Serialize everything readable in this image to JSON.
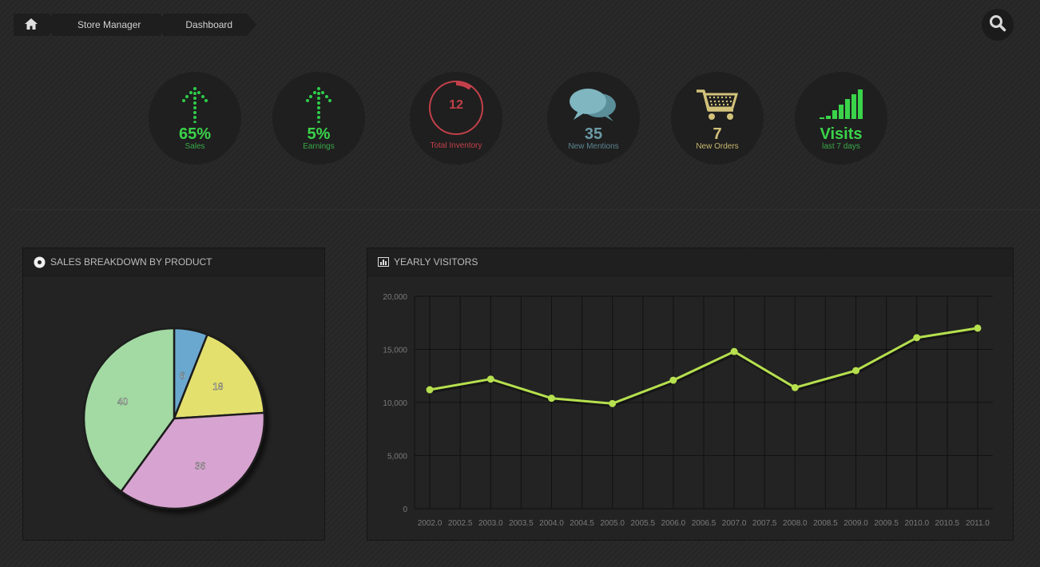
{
  "breadcrumb": {
    "home_icon": "home-icon",
    "items": [
      "Store Manager",
      "Dashboard"
    ]
  },
  "search": {
    "icon": "search-icon"
  },
  "stats": [
    {
      "value": "65%",
      "label": "Sales",
      "icon": "dotted-arrow-up-icon",
      "color": "#3ad44a"
    },
    {
      "value": "5%",
      "label": "Earnings",
      "icon": "dotted-arrow-up-icon",
      "color": "#3ad44a"
    },
    {
      "value": "12",
      "label": "Total Inventory",
      "icon": "ring-gauge-icon",
      "color": "#c8444a"
    },
    {
      "value": "35",
      "label": "New Mentions",
      "icon": "chat-bubbles-icon",
      "color": "#6b9aa6"
    },
    {
      "value": "7",
      "label": "New Orders",
      "icon": "shopping-cart-icon",
      "color": "#d2c27a"
    },
    {
      "value": "Visits",
      "label": "last 7 days",
      "icon": "signal-bars-icon",
      "color": "#3ad44a"
    }
  ],
  "pie_widget": {
    "title": "SALES BREAKDOWN BY PRODUCT",
    "icon": "pie-chart-icon",
    "chart_data": {
      "type": "pie",
      "values": [
        6,
        18,
        36,
        40
      ],
      "colors": [
        "#6aa8d0",
        "#e4e06e",
        "#d7a3d0",
        "#a3d9a3"
      ],
      "labels": [
        "6",
        "18",
        "36",
        "40"
      ]
    }
  },
  "line_widget": {
    "title": "YEARLY VISITORS",
    "icon": "bar-chart-icon",
    "chart_data": {
      "type": "line",
      "x": [
        2002,
        2003,
        2004,
        2005,
        2006,
        2007,
        2008,
        2009,
        2010,
        2011
      ],
      "y": [
        11200,
        12200,
        10400,
        9900,
        12100,
        14800,
        11400,
        13000,
        16100,
        17000
      ],
      "xlim": [
        2001.75,
        2011.25
      ],
      "ylim": [
        0,
        20000
      ],
      "xticks": [
        "2002.0",
        "2002.5",
        "2003.0",
        "2003.5",
        "2004.0",
        "2004.5",
        "2005.0",
        "2005.5",
        "2006.0",
        "2006.5",
        "2007.0",
        "2007.5",
        "2008.0",
        "2008.5",
        "2009.0",
        "2009.5",
        "2010.0",
        "2010.5",
        "2011.0"
      ],
      "yticks": [
        "0",
        "5,000",
        "10,000",
        "15,000",
        "20,000"
      ],
      "line_color": "#b6e04e",
      "grid": true
    }
  }
}
